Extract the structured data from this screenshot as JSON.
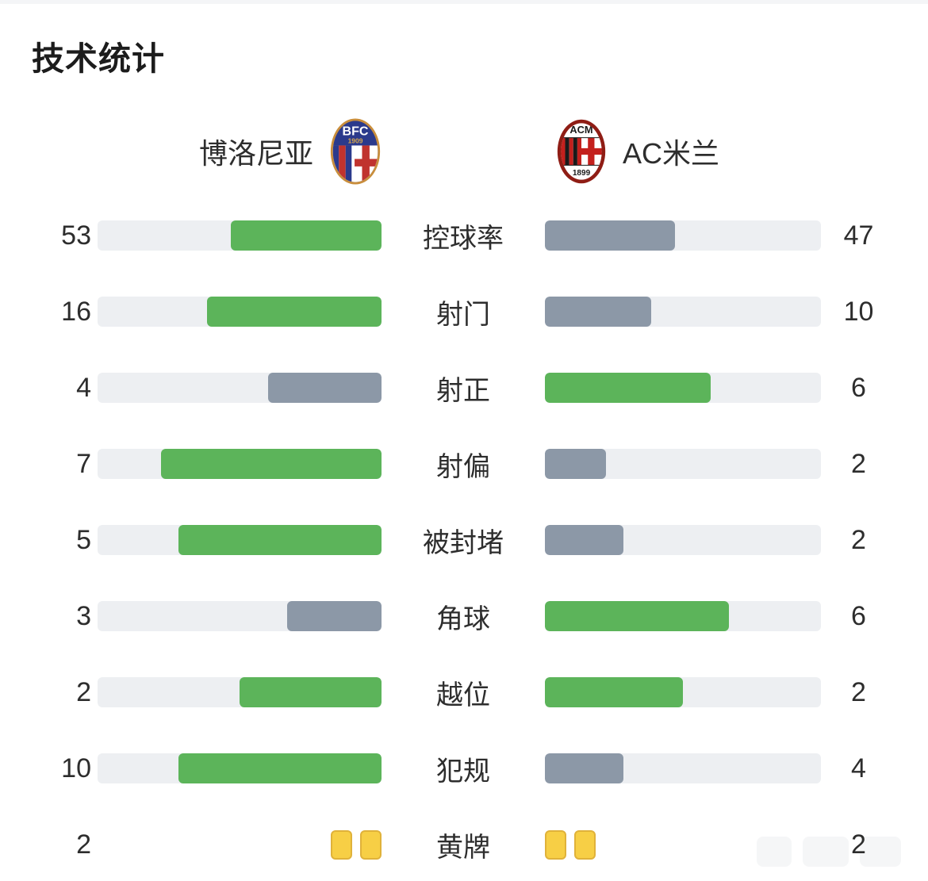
{
  "title": "技术统计",
  "teams": {
    "home": {
      "name": "博洛尼亚",
      "logo": "bologna-crest",
      "crest_text_top": "BFC",
      "crest_text_year": "1909"
    },
    "away": {
      "name": "AC米兰",
      "logo": "ac-milan-crest",
      "crest_text_top": "ACM",
      "crest_text_year": "1899"
    }
  },
  "colors": {
    "win": "#5cb45a",
    "lose": "#8c98a7",
    "tie": "#5cb45a",
    "track": "#edeff2",
    "card_fill": "#f7cf45",
    "card_border": "#e0b23a",
    "text": "#2d2d2d"
  },
  "rows": [
    {
      "label": "控球率",
      "home": 53,
      "away": 47,
      "style": "bar"
    },
    {
      "label": "射门",
      "home": 16,
      "away": 10,
      "style": "bar"
    },
    {
      "label": "射正",
      "home": 4,
      "away": 6,
      "style": "bar"
    },
    {
      "label": "射偏",
      "home": 7,
      "away": 2,
      "style": "bar"
    },
    {
      "label": "被封堵",
      "home": 5,
      "away": 2,
      "style": "bar"
    },
    {
      "label": "角球",
      "home": 3,
      "away": 6,
      "style": "bar"
    },
    {
      "label": "越位",
      "home": 2,
      "away": 2,
      "style": "bar"
    },
    {
      "label": "犯规",
      "home": 10,
      "away": 4,
      "style": "bar"
    },
    {
      "label": "黄牌",
      "home": 2,
      "away": 2,
      "style": "cards"
    }
  ],
  "chart_data": {
    "type": "bar",
    "title": "技术统计",
    "categories": [
      "控球率",
      "射门",
      "射正",
      "射偏",
      "被封堵",
      "角球",
      "越位",
      "犯规",
      "黄牌"
    ],
    "series": [
      {
        "name": "博洛尼亚",
        "values": [
          53,
          16,
          4,
          7,
          5,
          3,
          2,
          10,
          2
        ]
      },
      {
        "name": "AC米兰",
        "values": [
          47,
          10,
          6,
          2,
          2,
          6,
          2,
          4,
          2
        ]
      }
    ],
    "layout": "paired horizontal bars, home bars anchored right / away bars anchored left, fill fraction = value/(home+away), leading value green, trailing value gray-blue, yellow-card row drawn as card icons",
    "legend_position": "top (team names with crests)"
  }
}
